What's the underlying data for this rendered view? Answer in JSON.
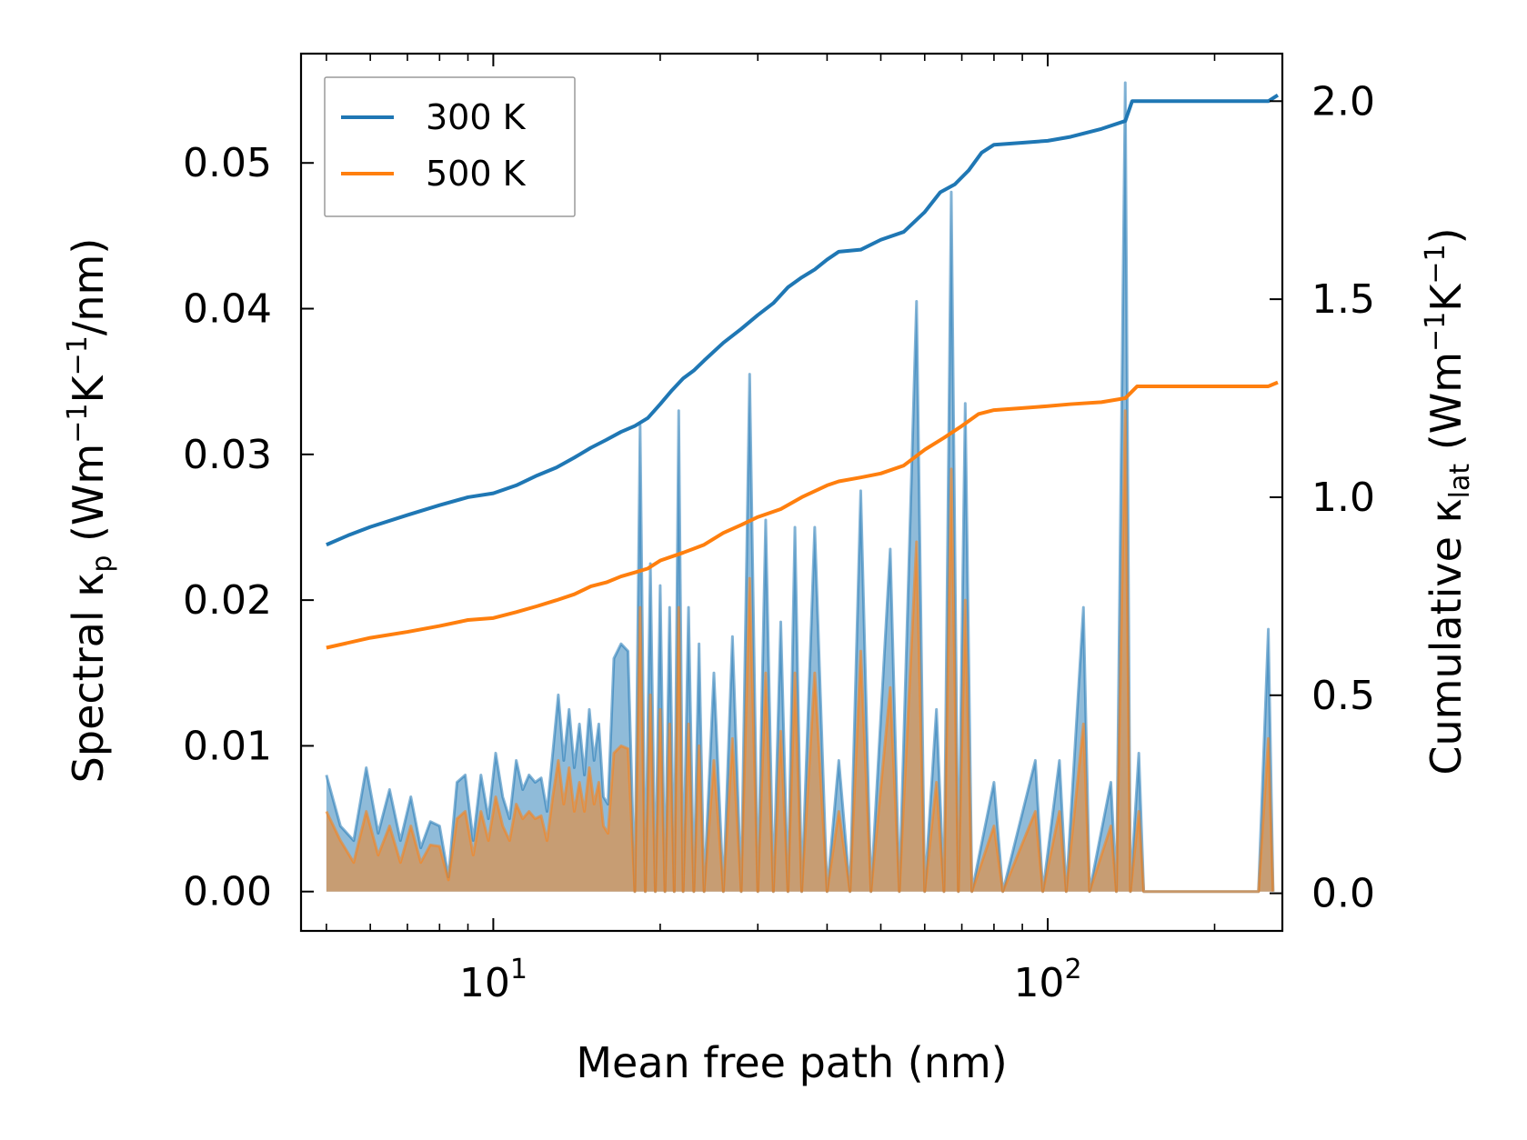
{
  "chart_data": {
    "type": "line",
    "xscale": "log",
    "xlim": [
      4.5,
      265
    ],
    "xlabel": "Mean free path (nm)",
    "x_ticks": [
      10,
      100
    ],
    "x_tick_labels": [
      {
        "base": "10",
        "exp": "1"
      },
      {
        "base": "10",
        "exp": "2"
      }
    ],
    "y_left": {
      "label_parts": [
        "Spectral κ",
        "p",
        " (Wm",
        "−1",
        "K",
        "−1",
        "/nm)"
      ],
      "lim": [
        -0.0027,
        0.0575
      ],
      "ticks": [
        0.0,
        0.01,
        0.02,
        0.03,
        0.04,
        0.05
      ],
      "tick_labels": [
        "0.00",
        "0.01",
        "0.02",
        "0.03",
        "0.04",
        "0.05"
      ]
    },
    "y_right": {
      "label_parts": [
        "Cumulative κ",
        "lat",
        " (Wm",
        "−1",
        "K",
        "−1",
        ")"
      ],
      "lim": [
        -0.095,
        2.12
      ],
      "ticks": [
        0.0,
        0.5,
        1.0,
        1.5,
        2.0
      ],
      "tick_labels": [
        "0.0",
        "0.5",
        "1.0",
        "1.5",
        "2.0"
      ]
    },
    "legend": {
      "position": "top-left",
      "entries": [
        "300 K",
        "500 K"
      ]
    },
    "colors": {
      "300 K": "#1f77b4",
      "500 K": "#ff7f0e"
    },
    "series": [
      {
        "name": "300 K",
        "axis": "right",
        "kind": "cumulative",
        "points": [
          [
            5.0,
            0.88
          ],
          [
            5.5,
            0.905
          ],
          [
            6.0,
            0.925
          ],
          [
            7.0,
            0.955
          ],
          [
            8.0,
            0.98
          ],
          [
            9.0,
            1.0
          ],
          [
            10.0,
            1.01
          ],
          [
            11.0,
            1.03
          ],
          [
            12.0,
            1.055
          ],
          [
            13.0,
            1.075
          ],
          [
            14.0,
            1.1
          ],
          [
            15.0,
            1.125
          ],
          [
            16.0,
            1.145
          ],
          [
            17.0,
            1.165
          ],
          [
            18.0,
            1.18
          ],
          [
            19.0,
            1.2
          ],
          [
            20.0,
            1.235
          ],
          [
            21.0,
            1.27
          ],
          [
            22.0,
            1.3
          ],
          [
            23.0,
            1.32
          ],
          [
            24.0,
            1.345
          ],
          [
            26.0,
            1.39
          ],
          [
            28.0,
            1.425
          ],
          [
            30.0,
            1.46
          ],
          [
            32.0,
            1.49
          ],
          [
            34.0,
            1.53
          ],
          [
            36.0,
            1.555
          ],
          [
            38.0,
            1.575
          ],
          [
            40.0,
            1.6
          ],
          [
            42.0,
            1.62
          ],
          [
            46.0,
            1.625
          ],
          [
            50.0,
            1.65
          ],
          [
            55.0,
            1.67
          ],
          [
            60.0,
            1.72
          ],
          [
            64.0,
            1.77
          ],
          [
            68.0,
            1.79
          ],
          [
            72.0,
            1.825
          ],
          [
            76.0,
            1.87
          ],
          [
            80.0,
            1.89
          ],
          [
            90.0,
            1.895
          ],
          [
            100.0,
            1.9
          ],
          [
            110.0,
            1.91
          ],
          [
            125.0,
            1.93
          ],
          [
            138.0,
            1.95
          ],
          [
            142.0,
            2.0
          ],
          [
            160.0,
            2.0
          ],
          [
            200.0,
            2.0
          ],
          [
            250.0,
            2.0
          ],
          [
            260.0,
            2.015
          ]
        ]
      },
      {
        "name": "500 K",
        "axis": "right",
        "kind": "cumulative",
        "points": [
          [
            5.0,
            0.62
          ],
          [
            6.0,
            0.645
          ],
          [
            7.0,
            0.66
          ],
          [
            8.0,
            0.675
          ],
          [
            9.0,
            0.69
          ],
          [
            10.0,
            0.695
          ],
          [
            11.0,
            0.71
          ],
          [
            12.0,
            0.725
          ],
          [
            13.0,
            0.74
          ],
          [
            14.0,
            0.755
          ],
          [
            15.0,
            0.775
          ],
          [
            16.0,
            0.785
          ],
          [
            17.0,
            0.8
          ],
          [
            18.0,
            0.81
          ],
          [
            19.0,
            0.82
          ],
          [
            20.0,
            0.84
          ],
          [
            22.0,
            0.86
          ],
          [
            24.0,
            0.88
          ],
          [
            26.0,
            0.91
          ],
          [
            28.0,
            0.93
          ],
          [
            30.0,
            0.95
          ],
          [
            33.0,
            0.97
          ],
          [
            36.0,
            1.0
          ],
          [
            40.0,
            1.03
          ],
          [
            42.0,
            1.04
          ],
          [
            46.0,
            1.05
          ],
          [
            50.0,
            1.06
          ],
          [
            55.0,
            1.08
          ],
          [
            60.0,
            1.12
          ],
          [
            65.0,
            1.15
          ],
          [
            70.0,
            1.18
          ],
          [
            75.0,
            1.21
          ],
          [
            80.0,
            1.22
          ],
          [
            90.0,
            1.225
          ],
          [
            100.0,
            1.23
          ],
          [
            110.0,
            1.235
          ],
          [
            125.0,
            1.24
          ],
          [
            138.0,
            1.25
          ],
          [
            145.0,
            1.28
          ],
          [
            160.0,
            1.28
          ],
          [
            200.0,
            1.28
          ],
          [
            250.0,
            1.28
          ],
          [
            260.0,
            1.29
          ]
        ]
      },
      {
        "name": "300 K",
        "axis": "left",
        "kind": "spectral",
        "points": [
          [
            5.0,
            0.008
          ],
          [
            5.3,
            0.0045
          ],
          [
            5.6,
            0.0035
          ],
          [
            5.9,
            0.0085
          ],
          [
            6.2,
            0.004
          ],
          [
            6.5,
            0.007
          ],
          [
            6.8,
            0.0035
          ],
          [
            7.1,
            0.0065
          ],
          [
            7.4,
            0.003
          ],
          [
            7.7,
            0.0048
          ],
          [
            8.0,
            0.0045
          ],
          [
            8.3,
            0.001
          ],
          [
            8.6,
            0.0075
          ],
          [
            8.9,
            0.008
          ],
          [
            9.2,
            0.0035
          ],
          [
            9.5,
            0.008
          ],
          [
            9.8,
            0.005
          ],
          [
            10.1,
            0.0095
          ],
          [
            10.4,
            0.0065
          ],
          [
            10.7,
            0.005
          ],
          [
            11.0,
            0.009
          ],
          [
            11.3,
            0.007
          ],
          [
            11.6,
            0.008
          ],
          [
            11.9,
            0.0075
          ],
          [
            12.2,
            0.0078
          ],
          [
            12.5,
            0.0055
          ],
          [
            12.8,
            0.0095
          ],
          [
            13.1,
            0.0135
          ],
          [
            13.4,
            0.009
          ],
          [
            13.7,
            0.0125
          ],
          [
            14.0,
            0.0085
          ],
          [
            14.3,
            0.0115
          ],
          [
            14.6,
            0.008
          ],
          [
            14.9,
            0.0125
          ],
          [
            15.2,
            0.009
          ],
          [
            15.5,
            0.0115
          ],
          [
            15.8,
            0.0065
          ],
          [
            16.1,
            0.006
          ],
          [
            16.5,
            0.016
          ],
          [
            17.0,
            0.017
          ],
          [
            17.5,
            0.0165
          ],
          [
            18.0,
            0.0
          ],
          [
            18.4,
            0.032
          ],
          [
            18.8,
            0.0
          ],
          [
            19.2,
            0.0225
          ],
          [
            19.6,
            0.0
          ],
          [
            20.0,
            0.021
          ],
          [
            20.4,
            0.0
          ],
          [
            20.8,
            0.0195
          ],
          [
            21.2,
            0.0
          ],
          [
            21.6,
            0.033
          ],
          [
            22.0,
            0.0
          ],
          [
            22.5,
            0.0195
          ],
          [
            23.0,
            0.0
          ],
          [
            23.5,
            0.017
          ],
          [
            24.0,
            0.0
          ],
          [
            25.0,
            0.015
          ],
          [
            26.0,
            0.0
          ],
          [
            27.0,
            0.0175
          ],
          [
            28.0,
            0.0
          ],
          [
            29.0,
            0.0355
          ],
          [
            30.0,
            0.0
          ],
          [
            31.0,
            0.0255
          ],
          [
            32.0,
            0.0
          ],
          [
            33.0,
            0.0185
          ],
          [
            34.0,
            0.0
          ],
          [
            35.0,
            0.025
          ],
          [
            36.0,
            0.0
          ],
          [
            38.0,
            0.025
          ],
          [
            40.0,
            0.0
          ],
          [
            42.0,
            0.009
          ],
          [
            44.0,
            0.0
          ],
          [
            46.0,
            0.0275
          ],
          [
            48.0,
            0.0
          ],
          [
            52.0,
            0.0235
          ],
          [
            54.0,
            0.0
          ],
          [
            58.0,
            0.0405
          ],
          [
            60.0,
            0.0
          ],
          [
            63.0,
            0.0125
          ],
          [
            65.0,
            0.0
          ],
          [
            67.0,
            0.048
          ],
          [
            69.0,
            0.0
          ],
          [
            71.0,
            0.0335
          ],
          [
            73.0,
            0.0
          ],
          [
            80.0,
            0.0075
          ],
          [
            83.0,
            0.0
          ],
          [
            95.0,
            0.009
          ],
          [
            98.0,
            0.0
          ],
          [
            105.0,
            0.009
          ],
          [
            108.0,
            0.0
          ],
          [
            116.0,
            0.0195
          ],
          [
            119.0,
            0.0
          ],
          [
            130.0,
            0.0075
          ],
          [
            133.0,
            0.0
          ],
          [
            138.0,
            0.0555
          ],
          [
            141.0,
            0.0
          ],
          [
            146.0,
            0.0095
          ],
          [
            149.0,
            0.0
          ],
          [
            240.0,
            0.0
          ],
          [
            250.0,
            0.018
          ],
          [
            255.0,
            0.0
          ]
        ]
      },
      {
        "name": "500 K",
        "axis": "left",
        "kind": "spectral",
        "points": [
          [
            5.0,
            0.0055
          ],
          [
            5.3,
            0.0035
          ],
          [
            5.6,
            0.002
          ],
          [
            5.9,
            0.0055
          ],
          [
            6.2,
            0.0025
          ],
          [
            6.5,
            0.0045
          ],
          [
            6.8,
            0.002
          ],
          [
            7.1,
            0.0045
          ],
          [
            7.4,
            0.002
          ],
          [
            7.7,
            0.0032
          ],
          [
            8.0,
            0.0031
          ],
          [
            8.3,
            0.0008
          ],
          [
            8.6,
            0.005
          ],
          [
            8.9,
            0.0055
          ],
          [
            9.2,
            0.0025
          ],
          [
            9.5,
            0.0055
          ],
          [
            9.8,
            0.0035
          ],
          [
            10.1,
            0.0065
          ],
          [
            10.4,
            0.0045
          ],
          [
            10.7,
            0.0035
          ],
          [
            11.0,
            0.006
          ],
          [
            11.3,
            0.005
          ],
          [
            11.6,
            0.0055
          ],
          [
            11.9,
            0.005
          ],
          [
            12.2,
            0.0052
          ],
          [
            12.5,
            0.0035
          ],
          [
            12.8,
            0.0065
          ],
          [
            13.1,
            0.009
          ],
          [
            13.4,
            0.006
          ],
          [
            13.7,
            0.0085
          ],
          [
            14.0,
            0.0055
          ],
          [
            14.3,
            0.0075
          ],
          [
            14.6,
            0.0055
          ],
          [
            14.9,
            0.0085
          ],
          [
            15.2,
            0.006
          ],
          [
            15.5,
            0.0075
          ],
          [
            15.8,
            0.0045
          ],
          [
            16.1,
            0.004
          ],
          [
            16.5,
            0.0095
          ],
          [
            17.0,
            0.01
          ],
          [
            17.5,
            0.0098
          ],
          [
            18.0,
            0.0
          ],
          [
            18.4,
            0.0195
          ],
          [
            18.8,
            0.0
          ],
          [
            19.2,
            0.0135
          ],
          [
            19.6,
            0.0
          ],
          [
            20.0,
            0.0125
          ],
          [
            20.4,
            0.0
          ],
          [
            20.8,
            0.0115
          ],
          [
            21.2,
            0.0
          ],
          [
            21.6,
            0.0195
          ],
          [
            22.0,
            0.0
          ],
          [
            22.5,
            0.0115
          ],
          [
            23.0,
            0.0
          ],
          [
            23.5,
            0.01
          ],
          [
            24.0,
            0.0
          ],
          [
            25.0,
            0.009
          ],
          [
            26.0,
            0.0
          ],
          [
            27.0,
            0.0105
          ],
          [
            28.0,
            0.0
          ],
          [
            29.0,
            0.0215
          ],
          [
            30.0,
            0.0
          ],
          [
            31.0,
            0.015
          ],
          [
            32.0,
            0.0
          ],
          [
            33.0,
            0.011
          ],
          [
            34.0,
            0.0
          ],
          [
            35.0,
            0.015
          ],
          [
            36.0,
            0.0
          ],
          [
            38.0,
            0.015
          ],
          [
            40.0,
            0.0
          ],
          [
            42.0,
            0.0055
          ],
          [
            44.0,
            0.0
          ],
          [
            46.0,
            0.0165
          ],
          [
            48.0,
            0.0
          ],
          [
            52.0,
            0.014
          ],
          [
            54.0,
            0.0
          ],
          [
            58.0,
            0.024
          ],
          [
            60.0,
            0.0
          ],
          [
            63.0,
            0.0075
          ],
          [
            65.0,
            0.0
          ],
          [
            67.0,
            0.029
          ],
          [
            69.0,
            0.0
          ],
          [
            71.0,
            0.02
          ],
          [
            73.0,
            0.0
          ],
          [
            80.0,
            0.0045
          ],
          [
            83.0,
            0.0
          ],
          [
            95.0,
            0.0055
          ],
          [
            98.0,
            0.0
          ],
          [
            105.0,
            0.0055
          ],
          [
            108.0,
            0.0
          ],
          [
            116.0,
            0.0115
          ],
          [
            119.0,
            0.0
          ],
          [
            130.0,
            0.0045
          ],
          [
            133.0,
            0.0
          ],
          [
            138.0,
            0.033
          ],
          [
            141.0,
            0.0
          ],
          [
            146.0,
            0.0055
          ],
          [
            149.0,
            0.0
          ],
          [
            240.0,
            0.0
          ],
          [
            250.0,
            0.0105
          ],
          [
            255.0,
            0.0
          ]
        ]
      }
    ]
  }
}
